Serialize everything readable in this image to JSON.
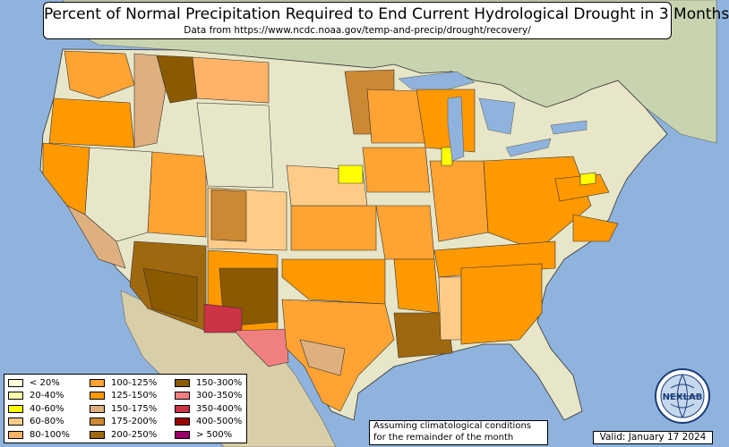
{
  "header": {
    "title": "Percent of Normal Precipitation Required to End Current Hydrological Drought in 3 Months",
    "subtitle": "Data from https://www.ncdc.noaa.gov/temp-and-precip/drought/recovery/"
  },
  "legend": {
    "items": [
      {
        "label": "< 20%",
        "color": "#ffffdd"
      },
      {
        "label": "20-40%",
        "color": "#ffffaa"
      },
      {
        "label": "40-60%",
        "color": "#ffff00"
      },
      {
        "label": "60-80%",
        "color": "#ffcc88"
      },
      {
        "label": "80-100%",
        "color": "#ffb366"
      },
      {
        "label": "100-125%",
        "color": "#ffa333"
      },
      {
        "label": "125-150%",
        "color": "#ff9900"
      },
      {
        "label": "150-175%",
        "color": "#deb07f"
      },
      {
        "label": "175-200%",
        "color": "#cc8833"
      },
      {
        "label": "200-250%",
        "color": "#a0680e"
      },
      {
        "label": "150-300%",
        "color": "#8b5a00"
      },
      {
        "label": "300-350%",
        "color": "#f08080"
      },
      {
        "label": "350-400%",
        "color": "#cc3344"
      },
      {
        "label": "400-500%",
        "color": "#990000"
      },
      {
        "label": "> 500%",
        "color": "#990066"
      }
    ]
  },
  "note": {
    "line1": "Assuming climatological conditions",
    "line2": "for the remainder of the month"
  },
  "valid": "Valid: January 17 2024",
  "logo": {
    "text": "NEXLAB",
    "icon": "globe-icon"
  },
  "map": {
    "ocean_color": "#8fb3dc",
    "land_color": "#e8e6c8",
    "canada_color": "#c8d4b0",
    "mexico_color": "#d8cfa8"
  }
}
